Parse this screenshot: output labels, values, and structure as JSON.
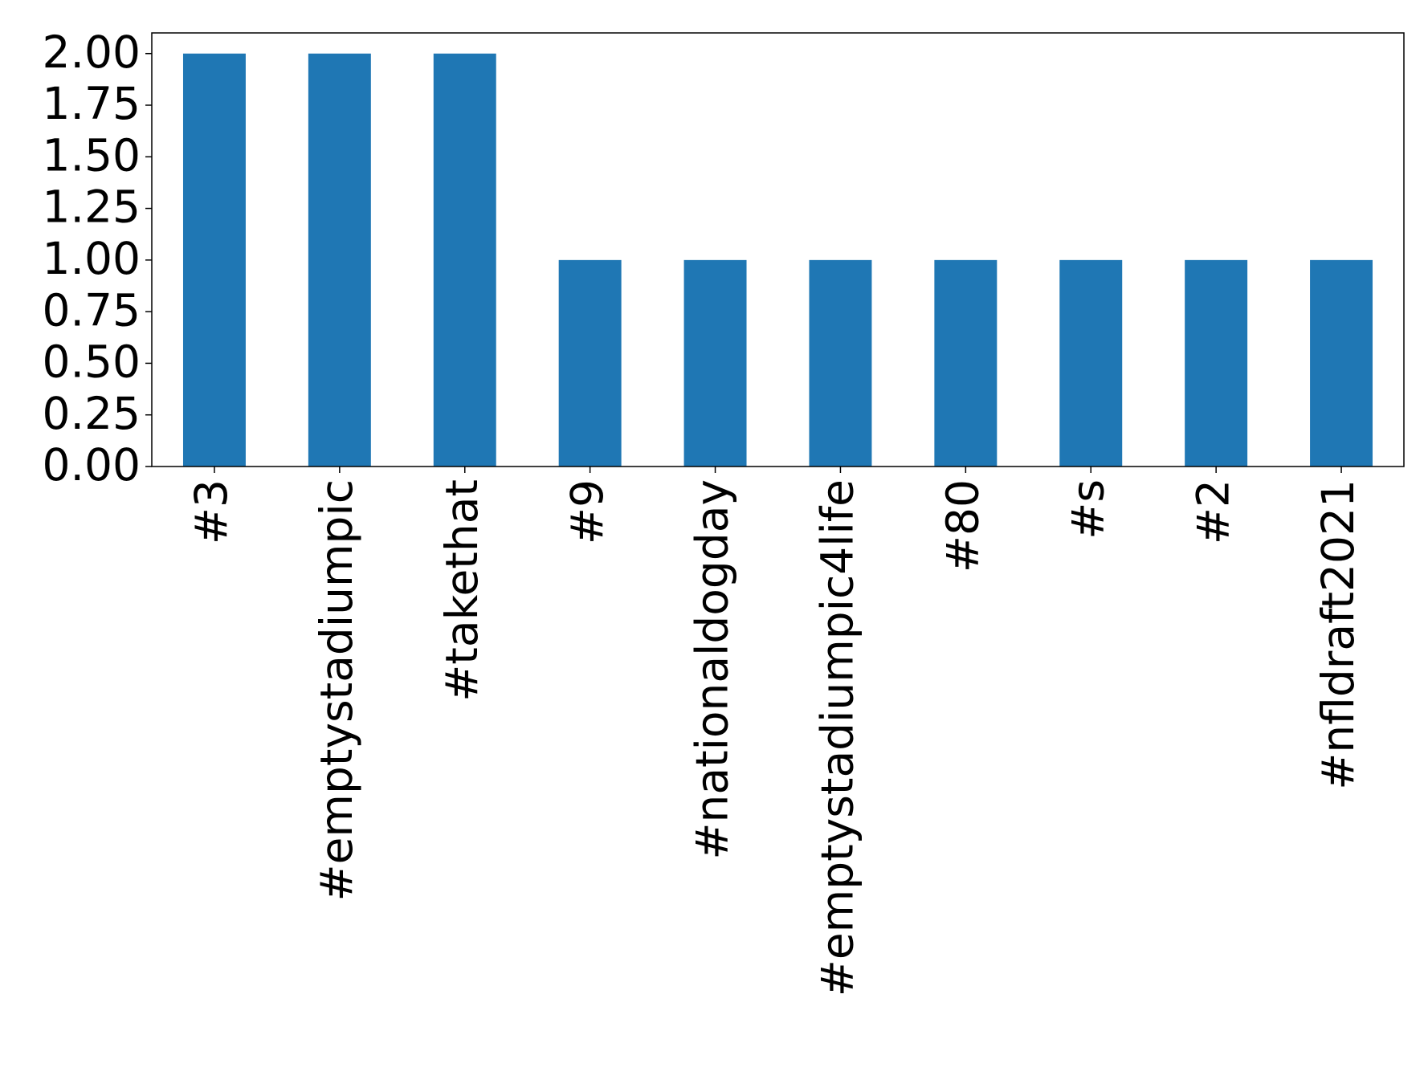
{
  "chart_data": {
    "type": "bar",
    "categories": [
      "#3",
      "#emptystadiumpic",
      "#takethat",
      "#9",
      "#nationaldogday",
      "#emptystadiumpic4life",
      "#80",
      "#s",
      "#2",
      "#nfldraft2021"
    ],
    "values": [
      2,
      2,
      2,
      1,
      1,
      1,
      1,
      1,
      1,
      1
    ],
    "color": "#1f77b4",
    "ylim": [
      0,
      2.1
    ],
    "yticks": [
      {
        "value": 0,
        "label": "0.00"
      },
      {
        "value": 0.25,
        "label": "0.25"
      },
      {
        "value": 0.5,
        "label": "0.50"
      },
      {
        "value": 0.75,
        "label": "0.75"
      },
      {
        "value": 1,
        "label": "1.00"
      },
      {
        "value": 1.25,
        "label": "1.25"
      },
      {
        "value": 1.5,
        "label": "1.50"
      },
      {
        "value": 1.75,
        "label": "1.75"
      },
      {
        "value": 2,
        "label": "2.00"
      }
    ],
    "grid": false
  }
}
